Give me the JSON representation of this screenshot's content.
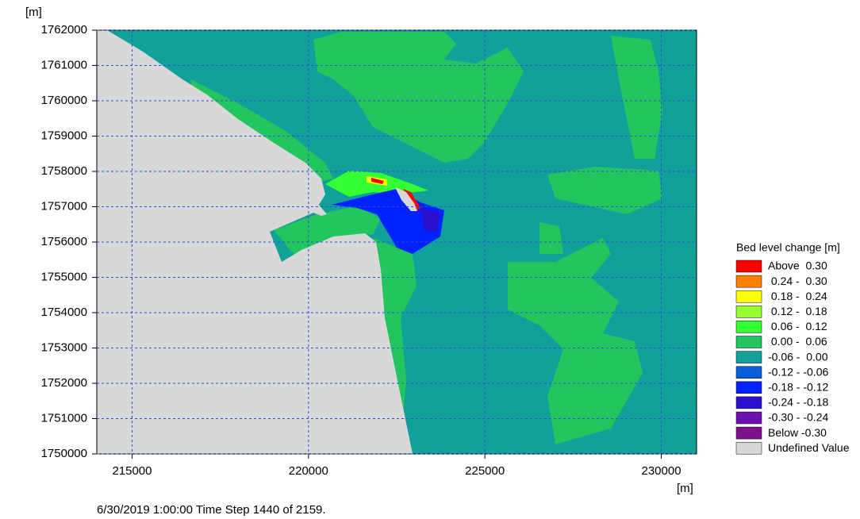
{
  "chart_data": {
    "type": "map",
    "x_label": "[m]",
    "y_label": "[m]",
    "xlim": [
      214000,
      231000
    ],
    "ylim": [
      1750000,
      1762000
    ],
    "xticks": [
      215000,
      220000,
      225000,
      230000
    ],
    "yticks": [
      1750000,
      1751000,
      1752000,
      1753000,
      1754000,
      1755000,
      1756000,
      1757000,
      1758000,
      1759000,
      1760000,
      1761000,
      1762000
    ],
    "grid": true,
    "legend": {
      "title": "Bed level change [m]",
      "position": "right",
      "items": [
        {
          "label": "Above  0.30",
          "color": "#ff0000"
        },
        {
          "label": " 0.24 -  0.30",
          "color": "#ff8000"
        },
        {
          "label": " 0.18 -  0.24",
          "color": "#ffff00"
        },
        {
          "label": " 0.12 -  0.18",
          "color": "#99ff33"
        },
        {
          "label": " 0.06 -  0.12",
          "color": "#33ff33"
        },
        {
          "label": " 0.00 -  0.06",
          "color": "#22c55e"
        },
        {
          "label": "-0.06 -  0.00",
          "color": "#12a09a"
        },
        {
          "label": "-0.12 - -0.06",
          "color": "#0a5ed9"
        },
        {
          "label": "-0.18 - -0.12",
          "color": "#0022ff"
        },
        {
          "label": "-0.24 - -0.18",
          "color": "#2a10cc"
        },
        {
          "label": "-0.30 - -0.24",
          "color": "#6a10b0"
        },
        {
          "label": "Below -0.30",
          "color": "#80108a"
        },
        {
          "label": "Undefined Value",
          "color": "#d8d8d8"
        }
      ]
    },
    "footer": "6/30/2019 1:00:00  Time Step 1440 of 2159."
  }
}
